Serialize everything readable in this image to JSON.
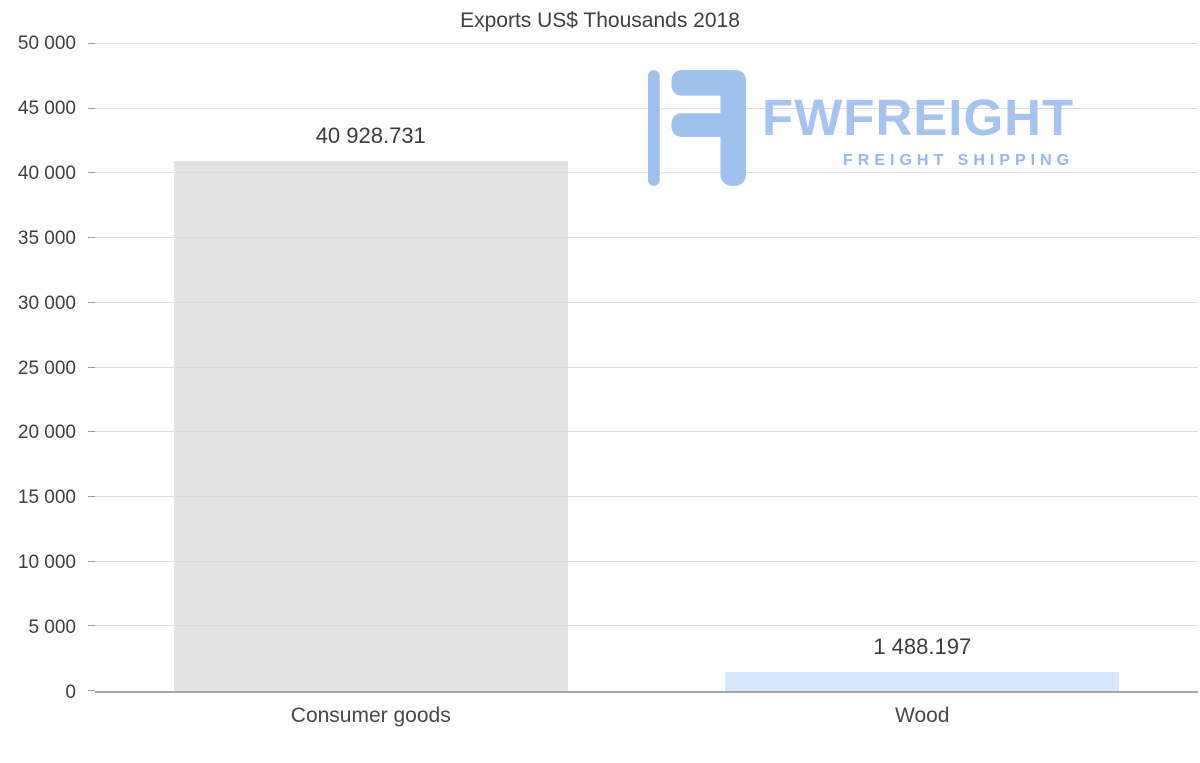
{
  "chart_data": {
    "type": "bar",
    "title": "Exports US$ Thousands 2018",
    "categories": [
      "Consumer goods",
      "Wood"
    ],
    "values": [
      40928.731,
      1488.197
    ],
    "value_labels": [
      "40 928.731",
      "1 488.197"
    ],
    "bar_colors": [
      "#e3e3e3",
      "#d5e8fc"
    ],
    "xlabel": "",
    "ylabel": "",
    "ylim": [
      0,
      50000
    ],
    "y_ticks": [
      {
        "value": 0,
        "label": "0"
      },
      {
        "value": 5000,
        "label": "5 000"
      },
      {
        "value": 10000,
        "label": "10 000"
      },
      {
        "value": 15000,
        "label": "15 000"
      },
      {
        "value": 20000,
        "label": "20 000"
      },
      {
        "value": 25000,
        "label": "25 000"
      },
      {
        "value": 30000,
        "label": "30 000"
      },
      {
        "value": 35000,
        "label": "35 000"
      },
      {
        "value": 40000,
        "label": "40 000"
      },
      {
        "value": 45000,
        "label": "45 000"
      },
      {
        "value": 50000,
        "label": "50 000"
      }
    ],
    "grid": "horizontal",
    "legend": "none"
  },
  "watermark": {
    "brand": "FWFREIGHT",
    "tagline": "FREIGHT SHIPPING",
    "color": "#a6c4f1"
  }
}
